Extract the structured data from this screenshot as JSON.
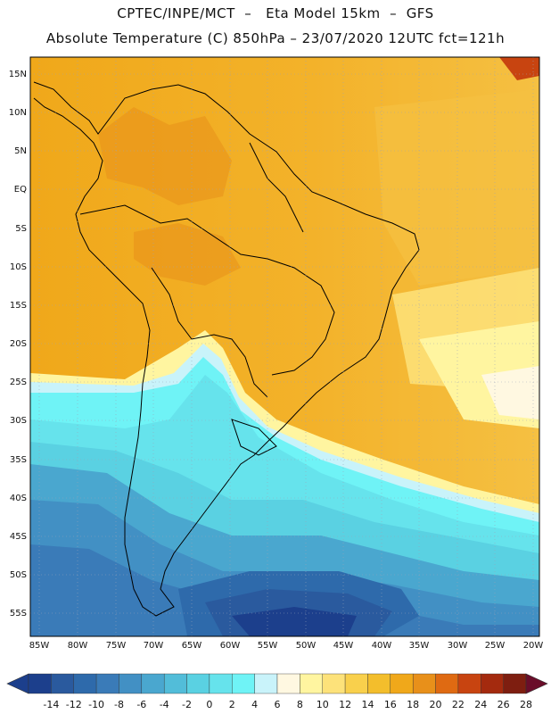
{
  "header": {
    "title_line1": "CPTEC/INPE/MCT  –   Eta Model 15km  –  GFS",
    "title_line2": "Absolute Temperature (C) 850hPa – 23/07/2020 12UTC fct=121h"
  },
  "map": {
    "lat_labels": [
      "15N",
      "10N",
      "5N",
      "EQ",
      "5S",
      "10S",
      "15S",
      "20S",
      "25S",
      "30S",
      "35S",
      "40S",
      "45S",
      "50S",
      "55S"
    ],
    "lon_labels": [
      "85W",
      "80W",
      "75W",
      "70W",
      "65W",
      "60W",
      "55W",
      "50W",
      "45W",
      "40W",
      "35W",
      "30W",
      "25W",
      "20W"
    ]
  },
  "colorbar": {
    "labels": [
      "-14",
      "-12",
      "-10",
      "-8",
      "-6",
      "-4",
      "-2",
      "0",
      "2",
      "4",
      "6",
      "8",
      "10",
      "12",
      "14",
      "16",
      "18",
      "20",
      "22",
      "24",
      "26",
      "28"
    ],
    "colors": [
      "#1c3f8c",
      "#2a5a9e",
      "#2e6aab",
      "#3a7bb8",
      "#4290c4",
      "#4aa7cf",
      "#52bdd9",
      "#5ad1e2",
      "#66e3ec",
      "#6ff3f6",
      "#c9f3fa",
      "#fff8e1",
      "#fff5a0",
      "#fde27a",
      "#f9d04c",
      "#f3be2c",
      "#f0a81a",
      "#e8901a",
      "#df6a12",
      "#c84410",
      "#a42a0e",
      "#7e1e10",
      "#6a0d2a"
    ]
  }
}
